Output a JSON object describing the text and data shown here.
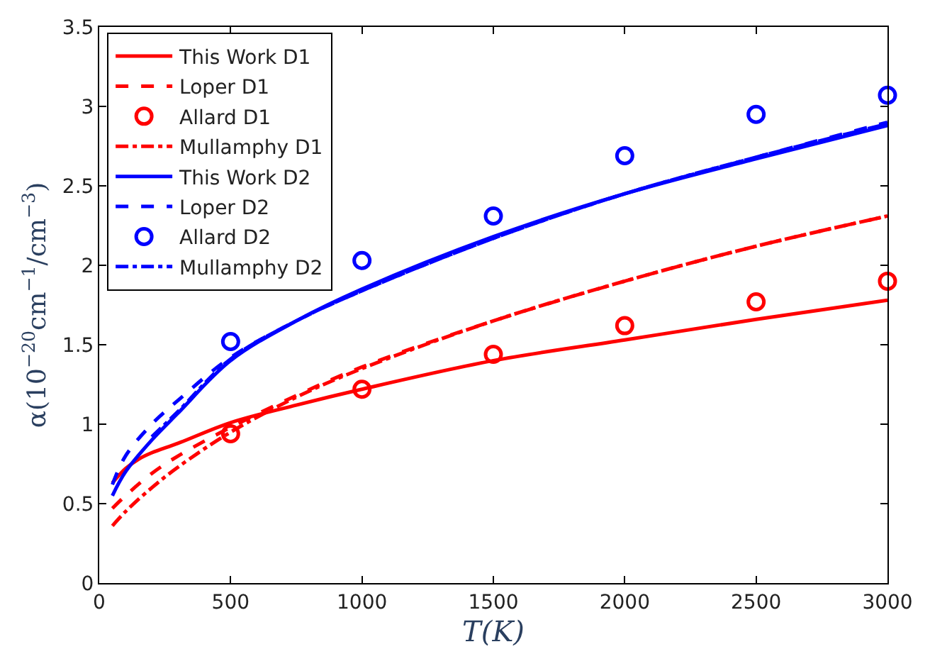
{
  "chart_data": {
    "type": "line",
    "xlabel": "T(K)",
    "ylabel": "α(10$^{−20}$cm$^{−1}$/cm$^{−3}$)",
    "xlim": [
      0,
      3000
    ],
    "ylim": [
      0,
      3.5
    ],
    "xticks": [
      0,
      500,
      1000,
      1500,
      2000,
      2500,
      3000
    ],
    "yticks": [
      0,
      0.5,
      1,
      1.5,
      2,
      2.5,
      3,
      3.5
    ],
    "legend": "top left",
    "series": [
      {
        "name": "This Work D1",
        "color": "#ff0000",
        "line_style": "solid",
        "marker": "none",
        "x": [
          50,
          100,
          150,
          200,
          300,
          500,
          750,
          1000,
          1500,
          2000,
          2500,
          3000
        ],
        "values": [
          0.63,
          0.72,
          0.78,
          0.82,
          0.88,
          1.01,
          1.12,
          1.22,
          1.4,
          1.53,
          1.66,
          1.78
        ]
      },
      {
        "name": "Loper D1",
        "color": "#ff0000",
        "line_style": "dashed",
        "marker": "none",
        "x": [
          50,
          100,
          200,
          300,
          500,
          750,
          1000,
          1500,
          2000,
          2500,
          3000
        ],
        "values": [
          0.47,
          0.55,
          0.69,
          0.8,
          0.98,
          1.18,
          1.36,
          1.65,
          1.9,
          2.12,
          2.31
        ]
      },
      {
        "name": "Allard D1",
        "color": "#ff0000",
        "type": "scatter",
        "marker": "circle",
        "x": [
          500,
          1000,
          1500,
          2000,
          2500,
          3000
        ],
        "values": [
          0.94,
          1.22,
          1.44,
          1.62,
          1.77,
          1.9
        ]
      },
      {
        "name": "Mullamphy D1",
        "color": "#ff0000",
        "line_style": "dashdot",
        "marker": "none",
        "x": [
          50,
          100,
          200,
          300,
          500,
          750,
          1000,
          1500,
          2000,
          2500,
          3000
        ],
        "values": [
          0.36,
          0.45,
          0.6,
          0.73,
          0.95,
          1.17,
          1.35,
          1.65,
          1.9,
          2.12,
          2.31
        ]
      },
      {
        "name": "This Work D2",
        "color": "#0000ff",
        "line_style": "solid",
        "marker": "none",
        "x": [
          50,
          100,
          200,
          300,
          500,
          750,
          1000,
          1500,
          2000,
          2500,
          3000
        ],
        "values": [
          0.55,
          0.7,
          0.9,
          1.07,
          1.4,
          1.65,
          1.85,
          2.18,
          2.45,
          2.67,
          2.88
        ]
      },
      {
        "name": "Loper D2",
        "color": "#0000ff",
        "line_style": "dashed",
        "marker": "none",
        "x": [
          50,
          100,
          200,
          300,
          500,
          750,
          1000,
          1500,
          2000,
          2500,
          3000
        ],
        "values": [
          0.62,
          0.8,
          1.0,
          1.15,
          1.42,
          1.65,
          1.84,
          2.17,
          2.45,
          2.68,
          2.9
        ]
      },
      {
        "name": "Allard D2",
        "color": "#0000ff",
        "type": "scatter",
        "marker": "circle",
        "x": [
          500,
          1000,
          1500,
          2000,
          2500,
          3000
        ],
        "values": [
          1.52,
          2.03,
          2.31,
          2.69,
          2.95,
          3.07
        ]
      },
      {
        "name": "Mullamphy D2",
        "color": "#0000ff",
        "line_style": "dashdot",
        "marker": "none",
        "x": [
          200,
          300,
          500,
          750,
          1000,
          1500,
          2000,
          2500,
          3000
        ],
        "values": [
          0.92,
          1.08,
          1.41,
          1.65,
          1.84,
          2.17,
          2.45,
          2.68,
          2.89
        ]
      }
    ]
  }
}
